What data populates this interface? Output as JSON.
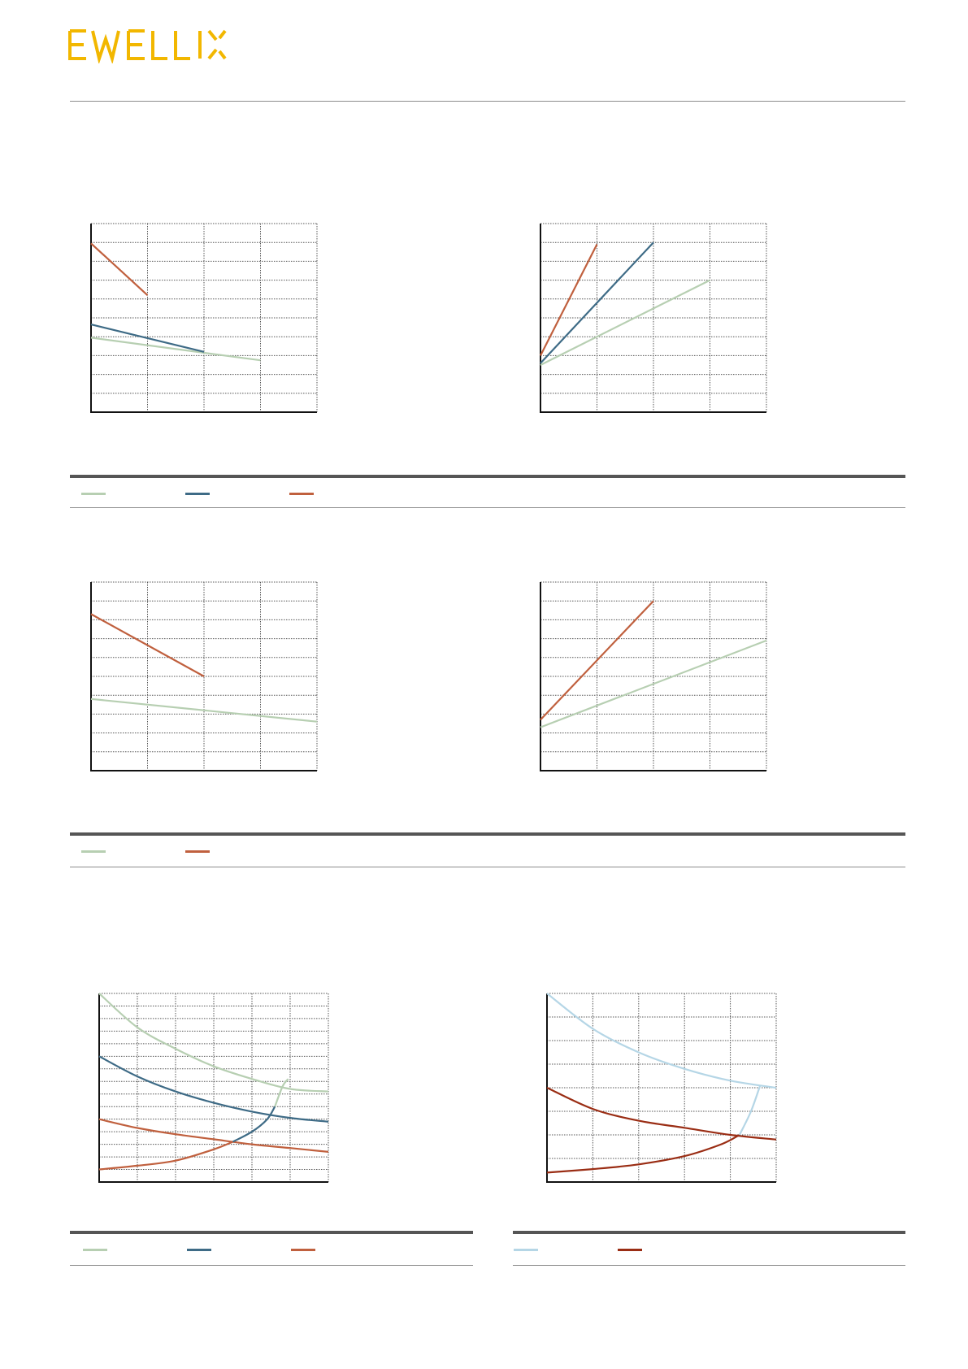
{
  "brand": {
    "logo_text": "EWELLIX",
    "logo_color": "#f2b700"
  },
  "colors": {
    "light_green": "#b7cfb2",
    "blue": "#3e6b86",
    "orange": "#c0603e",
    "light_blue": "#b5d6e6",
    "dark_red": "#9a2d14"
  },
  "legends": [
    {
      "items": [
        {
          "label": "",
          "color": "#b7cfb2"
        },
        {
          "label": "",
          "color": "#3e6b86"
        },
        {
          "label": "",
          "color": "#c0603e"
        }
      ]
    },
    {
      "items": [
        {
          "label": "",
          "color": "#b7cfb2"
        },
        {
          "label": "",
          "color": "#c0603e"
        }
      ]
    },
    {
      "items": [
        {
          "label": "",
          "color": "#b7cfb2"
        },
        {
          "label": "",
          "color": "#3e6b86"
        },
        {
          "label": "",
          "color": "#c0603e"
        }
      ]
    },
    {
      "items": [
        {
          "label": "",
          "color": "#b5d6e6"
        },
        {
          "label": "",
          "color": "#9a2d14"
        }
      ]
    }
  ],
  "chart_data": [
    {
      "type": "line",
      "title": "",
      "xlabel": "",
      "ylabel": "",
      "xlim": [
        0,
        4
      ],
      "ylim": [
        0,
        10
      ],
      "x_divisions": 4,
      "y_divisions": 10,
      "grid": true,
      "series": [
        {
          "color": "#b7cfb2",
          "x": [
            0,
            3
          ],
          "y": [
            3.95,
            2.75
          ]
        },
        {
          "color": "#3e6b86",
          "x": [
            0,
            2
          ],
          "y": [
            4.65,
            3.2
          ]
        },
        {
          "color": "#c0603e",
          "x": [
            0,
            1
          ],
          "y": [
            8.95,
            6.2
          ]
        }
      ]
    },
    {
      "type": "line",
      "title": "",
      "xlabel": "",
      "ylabel": "",
      "xlim": [
        0,
        4
      ],
      "ylim": [
        0,
        10
      ],
      "x_divisions": 4,
      "y_divisions": 10,
      "grid": true,
      "series": [
        {
          "color": "#b7cfb2",
          "x": [
            0,
            3
          ],
          "y": [
            2.5,
            7.0
          ]
        },
        {
          "color": "#3e6b86",
          "x": [
            0,
            2
          ],
          "y": [
            2.6,
            9.0
          ]
        },
        {
          "color": "#c0603e",
          "x": [
            0,
            1
          ],
          "y": [
            3.0,
            8.9
          ]
        }
      ]
    },
    {
      "type": "line",
      "title": "",
      "xlabel": "",
      "ylabel": "",
      "xlim": [
        0,
        4
      ],
      "ylim": [
        0,
        10
      ],
      "x_divisions": 4,
      "y_divisions": 10,
      "grid": true,
      "series": [
        {
          "color": "#b7cfb2",
          "x": [
            0,
            4
          ],
          "y": [
            3.8,
            2.6
          ]
        },
        {
          "color": "#c0603e",
          "x": [
            0,
            2
          ],
          "y": [
            8.3,
            5.0
          ]
        }
      ]
    },
    {
      "type": "line",
      "title": "",
      "xlabel": "",
      "ylabel": "",
      "xlim": [
        0,
        4
      ],
      "ylim": [
        0,
        10
      ],
      "x_divisions": 4,
      "y_divisions": 10,
      "grid": true,
      "series": [
        {
          "color": "#b7cfb2",
          "x": [
            0,
            4
          ],
          "y": [
            2.3,
            6.9
          ]
        },
        {
          "color": "#c0603e",
          "x": [
            0,
            2
          ],
          "y": [
            2.7,
            9.0
          ]
        }
      ]
    },
    {
      "type": "line",
      "title": "",
      "xlabel": "",
      "ylabel": "",
      "xlim": [
        0,
        6
      ],
      "ylim": [
        0,
        15
      ],
      "x_divisions": 6,
      "y_divisions": 15,
      "grid": true,
      "series": [
        {
          "color": "#b7cfb2",
          "x": [
            0,
            1,
            2,
            3,
            4,
            5,
            6
          ],
          "y": [
            15,
            12.3,
            10.6,
            9.2,
            8.2,
            7.4,
            7.2
          ]
        },
        {
          "color": "#3e6b86",
          "x": [
            0,
            1,
            2,
            3,
            4,
            5,
            6
          ],
          "y": [
            10,
            8.4,
            7.2,
            6.3,
            5.6,
            5.1,
            4.8
          ]
        },
        {
          "color": "#c0603e",
          "x": [
            0,
            1,
            2,
            3,
            4,
            5,
            6
          ],
          "y": [
            5.0,
            4.3,
            3.8,
            3.4,
            3.0,
            2.7,
            2.4
          ]
        },
        {
          "color": "#c0603e",
          "x": [
            0,
            1,
            2,
            3,
            3.5
          ],
          "y": [
            1.0,
            1.3,
            1.7,
            2.6,
            3.2
          ]
        },
        {
          "color": "#3e6b86",
          "x": [
            3.5,
            4.0,
            4.4,
            4.6
          ],
          "y": [
            3.2,
            4.0,
            5.0,
            6.0
          ]
        },
        {
          "color": "#b7cfb2",
          "x": [
            4.6,
            4.8,
            4.95
          ],
          "y": [
            6.0,
            7.6,
            8.2
          ]
        }
      ]
    },
    {
      "type": "line",
      "title": "",
      "xlabel": "",
      "ylabel": "",
      "xlim": [
        0,
        5
      ],
      "ylim": [
        0,
        8
      ],
      "x_divisions": 5,
      "y_divisions": 8,
      "grid": true,
      "series": [
        {
          "color": "#b5d6e6",
          "x": [
            0,
            1,
            2,
            3,
            4,
            5
          ],
          "y": [
            8,
            6.5,
            5.5,
            4.8,
            4.3,
            4.0
          ]
        },
        {
          "color": "#9a2d14",
          "x": [
            0,
            1,
            2,
            3,
            4,
            5
          ],
          "y": [
            4.0,
            3.1,
            2.6,
            2.3,
            2.0,
            1.8
          ]
        },
        {
          "color": "#9a2d14",
          "x": [
            0,
            1,
            2,
            3,
            3.8,
            4.2
          ],
          "y": [
            0.4,
            0.55,
            0.75,
            1.1,
            1.6,
            2.0
          ]
        },
        {
          "color": "#b5d6e6",
          "x": [
            4.2,
            4.45,
            4.65
          ],
          "y": [
            2.0,
            3.0,
            4.1
          ]
        }
      ]
    }
  ]
}
